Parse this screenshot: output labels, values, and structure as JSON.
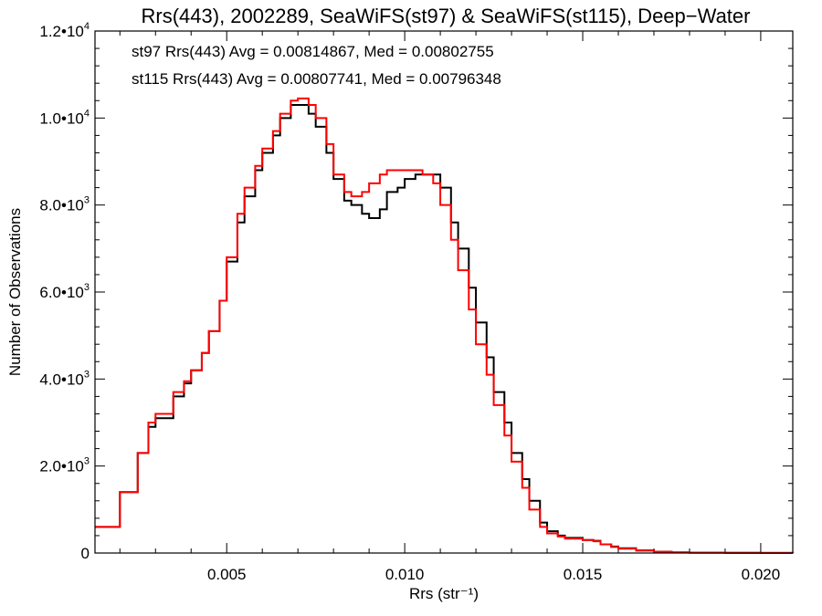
{
  "chart_data": {
    "type": "line",
    "title": "Rrs(443), 2002289, SeaWiFS(st97) & SeaWiFS(st115), Deep−Water",
    "xlabel": "Rrs (str⁻¹)",
    "ylabel": "Number of Observations",
    "xlim": [
      0.0013,
      0.0209
    ],
    "ylim": [
      0,
      12000
    ],
    "x_ticks": [
      0.005,
      0.01,
      0.015,
      0.02
    ],
    "x_tick_labels": [
      "0.005",
      "0.010",
      "0.015",
      "0.020"
    ],
    "y_ticks": [
      0,
      2000,
      4000,
      6000,
      8000,
      10000,
      12000
    ],
    "y_tick_labels": [
      {
        "mantissa": "0",
        "exp": ""
      },
      {
        "mantissa": "2.0•",
        "exp": "3"
      },
      {
        "mantissa": "4.0•",
        "exp": "3"
      },
      {
        "mantissa": "6.0•",
        "exp": "3"
      },
      {
        "mantissa": "8.0•",
        "exp": "3"
      },
      {
        "mantissa": "1.0•",
        "exp": "4"
      },
      {
        "mantissa": "1.2•",
        "exp": "4"
      }
    ],
    "grid": false,
    "step_histogram": true,
    "annotations": [
      {
        "text": "st97 Rrs(443) Avg = 0.00814867, Med = 0.00802755",
        "color": "#000000"
      },
      {
        "text": "st115 Rrs(443) Avg = 0.00807741, Med = 0.00796348",
        "color": "#ff0000"
      }
    ],
    "series": [
      {
        "color": "#000000",
        "x": [
          0.0013,
          0.002,
          0.0025,
          0.0028,
          0.003,
          0.0035,
          0.0038,
          0.004,
          0.0043,
          0.0045,
          0.0048,
          0.005,
          0.0053,
          0.0055,
          0.0058,
          0.006,
          0.0063,
          0.0065,
          0.0068,
          0.007,
          0.0073,
          0.0075,
          0.0078,
          0.008,
          0.0083,
          0.0085,
          0.0088,
          0.009,
          0.0093,
          0.0095,
          0.0098,
          0.01,
          0.0103,
          0.0105,
          0.0108,
          0.011,
          0.0113,
          0.0115,
          0.0118,
          0.012,
          0.0123,
          0.0125,
          0.0128,
          0.013,
          0.0133,
          0.0135,
          0.0138,
          0.014,
          0.0143,
          0.0145,
          0.0148,
          0.015,
          0.0153,
          0.0155,
          0.0158,
          0.016,
          0.0165,
          0.017,
          0.0175,
          0.018,
          0.019,
          0.02,
          0.0209
        ],
        "y": [
          600,
          1400,
          2300,
          2900,
          3100,
          3600,
          3900,
          4200,
          4600,
          5100,
          5800,
          6700,
          7600,
          8200,
          8800,
          9200,
          9600,
          10000,
          10300,
          10300,
          10100,
          9800,
          9200,
          8600,
          8100,
          8000,
          7800,
          7700,
          7900,
          8300,
          8400,
          8600,
          8700,
          8700,
          8700,
          8400,
          7600,
          7000,
          6100,
          5300,
          4500,
          3700,
          3000,
          2300,
          1700,
          1200,
          700,
          500,
          400,
          350,
          350,
          300,
          280,
          200,
          150,
          110,
          60,
          30,
          15,
          8,
          4,
          2,
          1
        ]
      },
      {
        "color": "#ff0000",
        "x": [
          0.0013,
          0.002,
          0.0025,
          0.0028,
          0.003,
          0.0035,
          0.0038,
          0.004,
          0.0043,
          0.0045,
          0.0048,
          0.005,
          0.0053,
          0.0055,
          0.0058,
          0.006,
          0.0063,
          0.0065,
          0.0068,
          0.007,
          0.0073,
          0.0075,
          0.0078,
          0.008,
          0.0083,
          0.0085,
          0.0088,
          0.009,
          0.0093,
          0.0095,
          0.0098,
          0.01,
          0.0103,
          0.0105,
          0.0108,
          0.011,
          0.0113,
          0.0115,
          0.0118,
          0.012,
          0.0123,
          0.0125,
          0.0128,
          0.013,
          0.0133,
          0.0135,
          0.0138,
          0.014,
          0.0143,
          0.0145,
          0.0148,
          0.015,
          0.0153,
          0.0155,
          0.0158,
          0.016,
          0.0165,
          0.017,
          0.0175,
          0.018,
          0.019,
          0.02,
          0.0209
        ],
        "y": [
          600,
          1400,
          2300,
          3000,
          3200,
          3700,
          3950,
          4200,
          4600,
          5100,
          5800,
          6800,
          7800,
          8400,
          8900,
          9300,
          9700,
          10100,
          10400,
          10450,
          10300,
          10000,
          9400,
          8700,
          8300,
          8200,
          8300,
          8500,
          8700,
          8800,
          8800,
          8800,
          8800,
          8700,
          8500,
          8000,
          7200,
          6500,
          5600,
          4800,
          4100,
          3400,
          2700,
          2100,
          1500,
          1000,
          600,
          450,
          380,
          330,
          330,
          300,
          270,
          200,
          140,
          100,
          55,
          28,
          14,
          7,
          3,
          2,
          1
        ]
      }
    ]
  }
}
